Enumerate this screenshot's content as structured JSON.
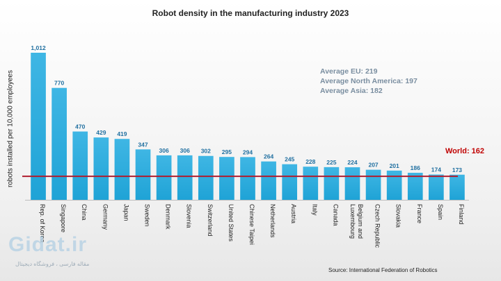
{
  "chart_data": {
    "type": "bar",
    "title": "Robot density in the manufacturing industry 2023",
    "xlabel": "",
    "ylabel": "robots installed per 10,000 employees",
    "ylim": [
      0,
      1012
    ],
    "categories": [
      "Rep. of Korea",
      "Singapore",
      "China",
      "Germany",
      "Japan",
      "Sweden",
      "Denmark",
      "Slovenia",
      "Switzerland",
      "United States",
      "Chinese Taipei",
      "Netherlands",
      "Austria",
      "Italy",
      "Canada",
      "Belgium and Luxembourg",
      "Czech Republic",
      "Slovakia",
      "France",
      "Spain",
      "Finland"
    ],
    "values": [
      1012,
      770,
      470,
      429,
      419,
      347,
      306,
      306,
      302,
      295,
      294,
      264,
      245,
      228,
      225,
      224,
      207,
      201,
      186,
      174,
      173
    ],
    "value_labels": [
      "1,012",
      "770",
      "470",
      "429",
      "419",
      "347",
      "306",
      "306",
      "302",
      "295",
      "294",
      "264",
      "245",
      "228",
      "225",
      "224",
      "207",
      "201",
      "186",
      "174",
      "173"
    ],
    "reference_line": {
      "label": "World: 162",
      "value": 162
    },
    "annotations": [
      "Average EU: 219",
      "Average North America: 197",
      "Average Asia: 182"
    ],
    "source": "Source: International Federation of Robotics"
  },
  "colors": {
    "bar": "#1fa3d6",
    "bar_top": "#3fb6e4",
    "reference_line": "#b01c2e",
    "value_label": "#1f6fa0"
  },
  "watermark": {
    "logo": "Gidat.ir",
    "tagline": "مقاله فارسی ، فروشگاه دیجیتال"
  }
}
